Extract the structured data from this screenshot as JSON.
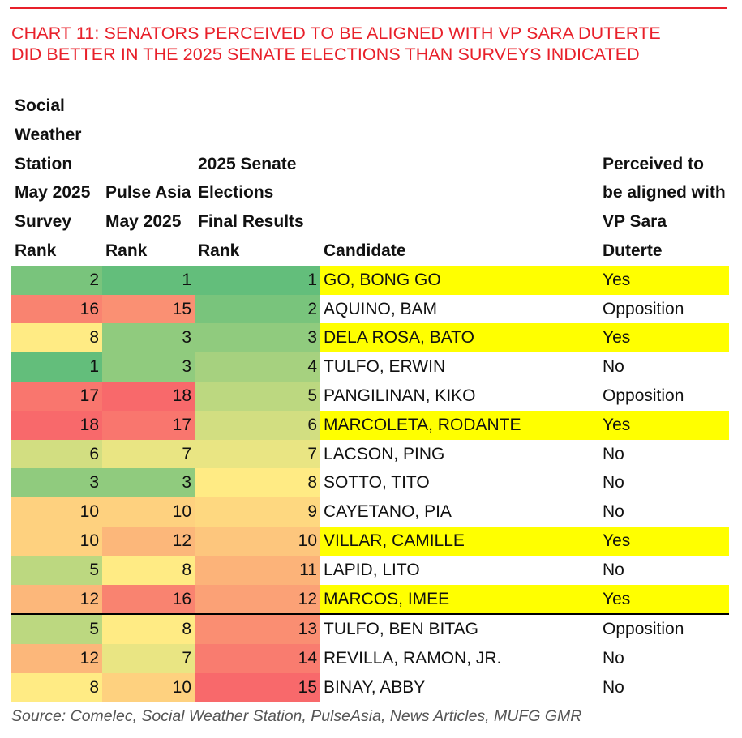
{
  "title_line1": "CHART 11: SENATORS PERCEIVED TO BE ALIGNED WITH VP SARA DUTERTE",
  "title_line2": "DID BETTER IN THE 2025 SENATE ELECTIONS THAN SURVEYS INDICATED",
  "source": "Source: Comelec, Social Weather Station, PulseAsia, News Articles, MUFG GMR",
  "colors": {
    "title": "#e8202a",
    "scale_low": "#63BE7B",
    "scale_mid": "#FFEB84",
    "scale_high": "#F8696B",
    "highlight": "#FFFF00"
  },
  "chart_data": {
    "type": "heatmap",
    "title": "CHART 11: SENATORS PERCEIVED TO BE ALIGNED WITH VP SARA DUTERTE DID BETTER IN THE 2025 SENATE ELECTIONS THAN SURVEYS INDICATED",
    "columns": [
      "Social Weather Station May 2025 Survey Rank",
      "Pulse Asia May 2025 Rank",
      "2025 Senate Elections Final Results Rank",
      "Candidate",
      "Perceived to be aligned with VP Sara Duterte"
    ],
    "rows": [
      {
        "sws": 2,
        "pulse": 1,
        "final": 1,
        "candidate": "GO, BONG GO",
        "aligned": "Yes"
      },
      {
        "sws": 16,
        "pulse": 15,
        "final": 2,
        "candidate": "AQUINO, BAM",
        "aligned": "Opposition"
      },
      {
        "sws": 8,
        "pulse": 3,
        "final": 3,
        "candidate": "DELA ROSA, BATO",
        "aligned": "Yes"
      },
      {
        "sws": 1,
        "pulse": 3,
        "final": 4,
        "candidate": "TULFO, ERWIN",
        "aligned": "No"
      },
      {
        "sws": 17,
        "pulse": 18,
        "final": 5,
        "candidate": "PANGILINAN, KIKO",
        "aligned": "Opposition"
      },
      {
        "sws": 18,
        "pulse": 17,
        "final": 6,
        "candidate": "MARCOLETA, RODANTE",
        "aligned": "Yes"
      },
      {
        "sws": 6,
        "pulse": 7,
        "final": 7,
        "candidate": "LACSON, PING",
        "aligned": "No"
      },
      {
        "sws": 3,
        "pulse": 3,
        "final": 8,
        "candidate": "SOTTO, TITO",
        "aligned": "No"
      },
      {
        "sws": 10,
        "pulse": 10,
        "final": 9,
        "candidate": "CAYETANO, PIA",
        "aligned": "No"
      },
      {
        "sws": 10,
        "pulse": 12,
        "final": 10,
        "candidate": "VILLAR, CAMILLE",
        "aligned": "Yes"
      },
      {
        "sws": 5,
        "pulse": 8,
        "final": 11,
        "candidate": "LAPID, LITO",
        "aligned": "No"
      },
      {
        "sws": 12,
        "pulse": 16,
        "final": 12,
        "candidate": "MARCOS, IMEE",
        "aligned": "Yes"
      },
      {
        "sws": 5,
        "pulse": 8,
        "final": 13,
        "candidate": "TULFO, BEN BITAG",
        "aligned": "Opposition"
      },
      {
        "sws": 12,
        "pulse": 7,
        "final": 14,
        "candidate": "REVILLA, RAMON, JR.",
        "aligned": "No"
      },
      {
        "sws": 8,
        "pulse": 10,
        "final": 15,
        "candidate": "BINAY, ABBY",
        "aligned": "No"
      }
    ],
    "color_scale": "green-yellow-red, per column, low rank green, median yellow, high rank red",
    "highlighted_rows": "aligned = Yes",
    "separator_after_rank": 12
  }
}
